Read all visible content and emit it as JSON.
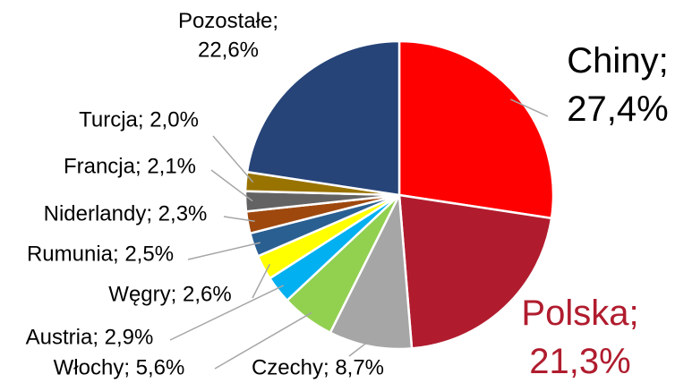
{
  "chart_data": {
    "type": "pie",
    "values": [
      27.4,
      21.3,
      8.7,
      5.6,
      2.9,
      2.6,
      2.5,
      2.3,
      2.1,
      2.0,
      22.6
    ],
    "value_labels": [
      "Chiny; 27,4%",
      "Polska; 21,3%",
      "Czechy; 8,7%",
      "Włochy; 5,6%",
      "Austria; 2,9%",
      "Węgry; 2,6%",
      "Rumunia; 2,5%",
      "Niderlandy; 2,3%",
      "Francja; 2,1%",
      "Turcja; 2,0%",
      "Pozostałe; 22,6%"
    ],
    "colors": [
      "#ff0000",
      "#b01c2e",
      "#a6a6a6",
      "#92d050",
      "#00b0f0",
      "#ffff00",
      "#2a5f91",
      "#9e480e",
      "#636363",
      "#997300",
      "#264478"
    ]
  }
}
